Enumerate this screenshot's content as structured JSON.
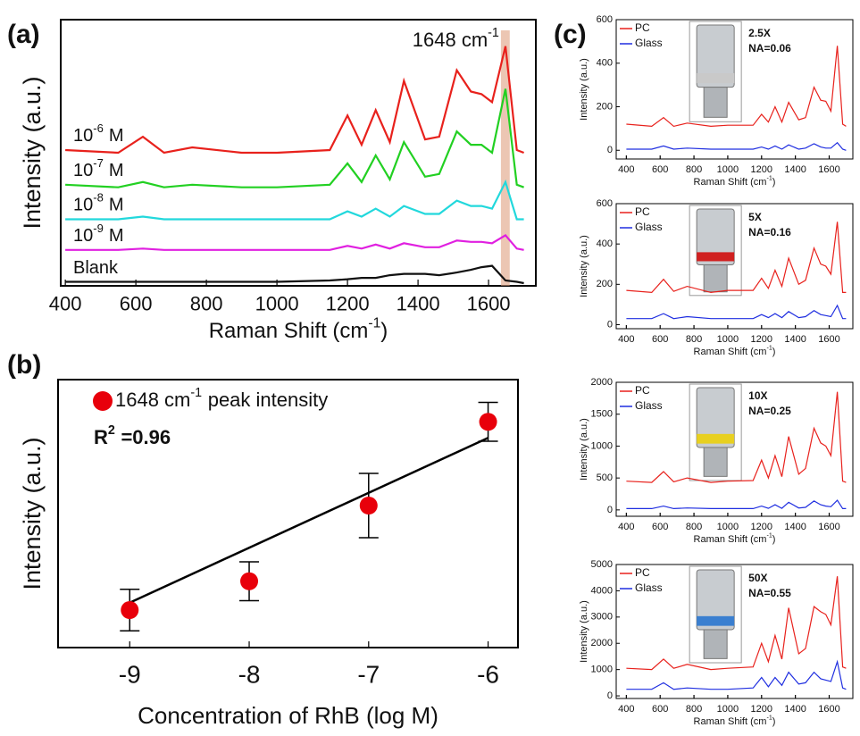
{
  "chart_data": [
    {
      "type": "line",
      "panel": "(a)",
      "xlabel": {
        "text": "Raman Shift (cm",
        "sup": "-1",
        "tail": ")"
      },
      "ylabel": "Intensity (a.u.)",
      "x": [
        400,
        550,
        620,
        680,
        760,
        900,
        1000,
        1150,
        1200,
        1240,
        1280,
        1320,
        1360,
        1420,
        1460,
        1510,
        1550,
        1580,
        1610,
        1648,
        1680,
        1700
      ],
      "xlim": [
        387,
        1734
      ],
      "xticks": [
        400,
        600,
        800,
        1000,
        1200,
        1400,
        1600
      ],
      "ylim": [
        0,
        10
      ],
      "highlight": [
        1635,
        1660
      ],
      "annotation": {
        "text": "1648 cm",
        "sup": "-1"
      },
      "series": [
        {
          "name": {
            "base": "10",
            "exp": "-6",
            "unit": "M"
          },
          "color": "#e8211c",
          "values": [
            5.1,
            5.0,
            5.6,
            5.0,
            5.2,
            5.0,
            5.0,
            5.1,
            6.4,
            5.3,
            6.6,
            5.4,
            7.7,
            5.5,
            5.6,
            8.1,
            7.3,
            7.2,
            6.9,
            9.0,
            5.1,
            5.0
          ]
        },
        {
          "name": {
            "base": "10",
            "exp": "-7",
            "unit": "M"
          },
          "color": "#22d022",
          "values": [
            3.8,
            3.7,
            3.9,
            3.7,
            3.8,
            3.7,
            3.7,
            3.8,
            4.6,
            3.9,
            4.9,
            4.0,
            5.4,
            4.1,
            4.2,
            5.8,
            5.3,
            5.3,
            5.0,
            7.4,
            3.8,
            3.7
          ]
        },
        {
          "name": {
            "base": "10",
            "exp": "-8",
            "unit": "M"
          },
          "color": "#22d8dc",
          "values": [
            2.5,
            2.5,
            2.6,
            2.5,
            2.5,
            2.5,
            2.5,
            2.5,
            2.8,
            2.6,
            2.9,
            2.6,
            3.0,
            2.7,
            2.7,
            3.2,
            3.0,
            3.0,
            2.9,
            3.9,
            2.5,
            2.5
          ]
        },
        {
          "name": {
            "base": "10",
            "exp": "-9",
            "unit": "M"
          },
          "color": "#e020e0",
          "values": [
            1.35,
            1.35,
            1.4,
            1.35,
            1.35,
            1.35,
            1.35,
            1.35,
            1.5,
            1.4,
            1.55,
            1.4,
            1.6,
            1.45,
            1.45,
            1.7,
            1.65,
            1.65,
            1.6,
            1.9,
            1.4,
            1.35
          ]
        },
        {
          "name": "Blank",
          "color": "#111111",
          "values": [
            0.15,
            0.15,
            0.15,
            0.15,
            0.15,
            0.15,
            0.15,
            0.2,
            0.25,
            0.3,
            0.3,
            0.4,
            0.45,
            0.45,
            0.4,
            0.5,
            0.6,
            0.7,
            0.75,
            0.2,
            0.15,
            0.1
          ]
        }
      ]
    },
    {
      "type": "scatter",
      "panel": "(b)",
      "xlabel": "Concentration of RhB (log M)",
      "ylabel": "Intensity (a.u.)",
      "x": [
        -9,
        -8,
        -7,
        -6
      ],
      "values": [
        0.56,
        0.99,
        2.12,
        3.37
      ],
      "errors": [
        0.31,
        0.29,
        0.48,
        0.29
      ],
      "color": "#e8000b",
      "xlim": [
        -9.6,
        -5.75
      ],
      "xticks": [
        -9,
        -8,
        -7,
        -6
      ],
      "ylim": [
        0,
        4
      ],
      "fit": {
        "x": [
          -9,
          -6
        ],
        "values": [
          0.67,
          3.13
        ]
      },
      "legend_name": {
        "text": "1648 cm",
        "sup": "-1",
        "tail": "peak intensity"
      },
      "r2": {
        "base": "R",
        "sup": "2",
        "tail": "=0.96"
      }
    },
    {
      "type": "line",
      "panel": "(c)",
      "legend": "upper left",
      "xlabel": {
        "text": "Raman Shift (cm",
        "sup": "-1",
        "tail": ")"
      },
      "ylabel": "Intensity (a.u.)",
      "objective": {
        "mag": "2.5X",
        "na": "NA=0.06"
      },
      "x": [
        400,
        550,
        620,
        680,
        760,
        900,
        1000,
        1150,
        1200,
        1240,
        1280,
        1320,
        1360,
        1420,
        1460,
        1510,
        1550,
        1580,
        1610,
        1648,
        1680,
        1700
      ],
      "xlim": [
        340,
        1740
      ],
      "xticks": [
        400,
        600,
        800,
        1000,
        1200,
        1400,
        1600
      ],
      "ylim": [
        -40,
        600
      ],
      "yticks": [
        0,
        200,
        400,
        600
      ],
      "series": [
        {
          "name": "PC",
          "color": "#e8211c",
          "values": [
            120,
            110,
            150,
            110,
            125,
            110,
            115,
            115,
            165,
            130,
            200,
            130,
            220,
            140,
            150,
            290,
            230,
            225,
            180,
            480,
            120,
            110
          ]
        },
        {
          "name": "Glass",
          "color": "#1f2ee0",
          "values": [
            5,
            5,
            20,
            5,
            10,
            5,
            5,
            5,
            15,
            5,
            20,
            5,
            25,
            5,
            10,
            30,
            15,
            10,
            10,
            35,
            5,
            0
          ]
        }
      ]
    },
    {
      "type": "line",
      "legend": "upper left",
      "xlabel": {
        "text": "Raman Shift (cm",
        "sup": "-1",
        "tail": ")"
      },
      "ylabel": "Intensity (a.u.)",
      "objective": {
        "mag": "5X",
        "na": "NA=0.16"
      },
      "x": [
        400,
        550,
        620,
        680,
        760,
        900,
        1000,
        1150,
        1200,
        1240,
        1280,
        1320,
        1360,
        1420,
        1460,
        1510,
        1550,
        1580,
        1610,
        1648,
        1680,
        1700
      ],
      "xlim": [
        340,
        1740
      ],
      "xticks": [
        400,
        600,
        800,
        1000,
        1200,
        1400,
        1600
      ],
      "ylim": [
        -20,
        600
      ],
      "yticks": [
        0,
        200,
        400,
        600
      ],
      "series": [
        {
          "name": "PC",
          "color": "#e8211c",
          "values": [
            170,
            160,
            225,
            165,
            190,
            160,
            170,
            170,
            230,
            180,
            270,
            190,
            330,
            200,
            220,
            380,
            300,
            290,
            250,
            510,
            160,
            160
          ]
        },
        {
          "name": "Glass",
          "color": "#1f2ee0",
          "values": [
            30,
            30,
            55,
            30,
            40,
            30,
            30,
            30,
            50,
            35,
            55,
            35,
            65,
            35,
            40,
            70,
            50,
            45,
            40,
            95,
            30,
            30
          ]
        }
      ]
    },
    {
      "type": "line",
      "legend": "upper left",
      "xlabel": {
        "text": "Raman Shift (cm",
        "sup": "-1",
        "tail": ")"
      },
      "ylabel": "Intensity (a.u.)",
      "objective": {
        "mag": "10X",
        "na": "NA=0.25"
      },
      "x": [
        400,
        550,
        620,
        680,
        760,
        900,
        1000,
        1150,
        1200,
        1240,
        1280,
        1320,
        1360,
        1420,
        1460,
        1510,
        1550,
        1580,
        1610,
        1648,
        1680,
        1700
      ],
      "xlim": [
        340,
        1740
      ],
      "xticks": [
        400,
        600,
        800,
        1000,
        1200,
        1400,
        1600
      ],
      "ylim": [
        -100,
        2000
      ],
      "yticks": [
        0,
        500,
        1000,
        1500,
        2000
      ],
      "series": [
        {
          "name": "PC",
          "color": "#e8211c",
          "values": [
            450,
            430,
            600,
            440,
            500,
            430,
            450,
            460,
            780,
            500,
            850,
            520,
            1150,
            560,
            650,
            1280,
            1050,
            1000,
            850,
            1850,
            450,
            430
          ]
        },
        {
          "name": "Glass",
          "color": "#1f2ee0",
          "values": [
            20,
            20,
            60,
            20,
            30,
            20,
            20,
            20,
            60,
            25,
            80,
            25,
            120,
            30,
            40,
            140,
            80,
            60,
            50,
            150,
            20,
            20
          ]
        }
      ]
    },
    {
      "type": "line",
      "legend": "upper left",
      "xlabel": {
        "text": "Raman Shift (cm",
        "sup": "-1",
        "tail": ")"
      },
      "ylabel": "Intensity (a.u.)",
      "objective": {
        "mag": "50X",
        "na": "NA=0.55"
      },
      "x": [
        400,
        550,
        620,
        680,
        760,
        900,
        1000,
        1150,
        1200,
        1240,
        1280,
        1320,
        1360,
        1420,
        1460,
        1510,
        1550,
        1580,
        1610,
        1648,
        1680,
        1700
      ],
      "xlim": [
        340,
        1740
      ],
      "xticks": [
        400,
        600,
        800,
        1000,
        1200,
        1400,
        1600
      ],
      "ylim": [
        -100,
        5000
      ],
      "yticks": [
        0,
        1000,
        2000,
        3000,
        4000,
        5000
      ],
      "series": [
        {
          "name": "PC",
          "color": "#e8211c",
          "values": [
            1050,
            1000,
            1400,
            1050,
            1200,
            1000,
            1050,
            1100,
            2000,
            1300,
            2300,
            1400,
            3350,
            1600,
            1800,
            3400,
            3200,
            3100,
            2700,
            4550,
            1100,
            1050
          ]
        },
        {
          "name": "Glass",
          "color": "#1f2ee0",
          "values": [
            250,
            250,
            500,
            250,
            300,
            250,
            250,
            300,
            700,
            350,
            700,
            400,
            900,
            450,
            500,
            900,
            650,
            600,
            550,
            1300,
            300,
            250
          ]
        }
      ]
    }
  ]
}
